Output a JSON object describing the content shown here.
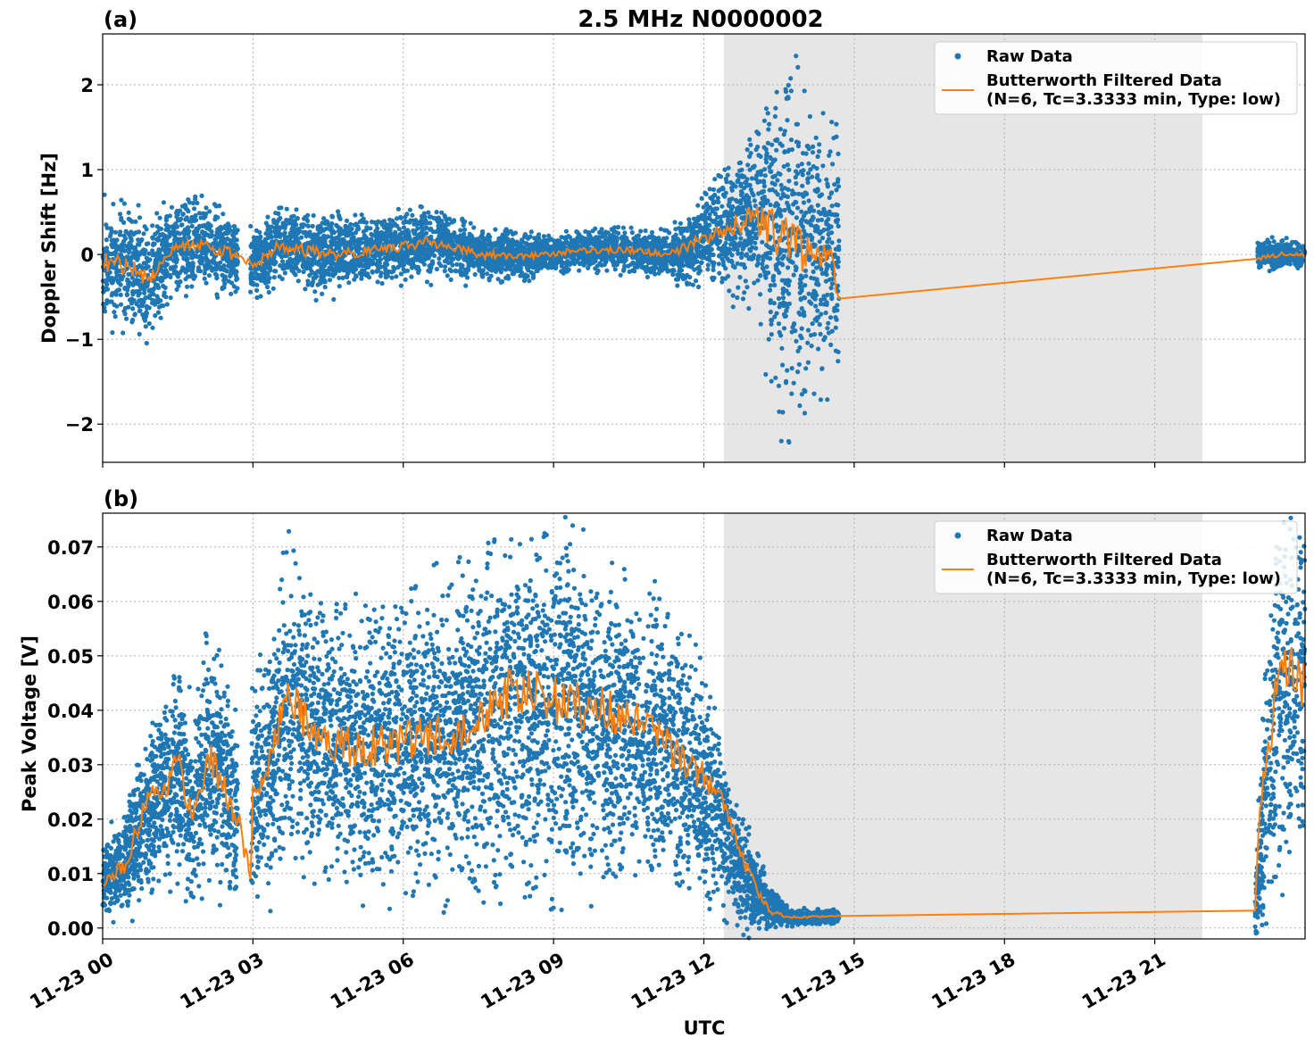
{
  "figure_title": "2.5 MHz N0000002",
  "colors": {
    "raw": "#1f77b4",
    "filtered": "#ff7f0e",
    "night_shade": "#e6e6e6",
    "grid": "#b0b0b0"
  },
  "x_axis": {
    "label": "UTC",
    "range_hours": [
      0,
      24
    ],
    "tick_hours": [
      0,
      3,
      6,
      9,
      12,
      15,
      18,
      21
    ],
    "tick_labels": [
      "11-23 00",
      "11-23 03",
      "11-23 06",
      "11-23 09",
      "11-23 12",
      "11-23 15",
      "11-23 18",
      "11-23 21"
    ],
    "shaded_interval_hours": [
      12.4,
      21.95
    ]
  },
  "legend": {
    "raw_label": "Raw Data",
    "filtered_label_line1": "Butterworth Filtered Data",
    "filtered_label_line2": "(N=6, Tc=3.3333 min, Type: low)"
  },
  "chart_data": [
    {
      "panel_label": "(a)",
      "type": "scatter",
      "ylabel": "Doppler Shift [Hz]",
      "ylim": [
        -2.45,
        2.6
      ],
      "yticks": [
        -2,
        -1,
        0,
        1,
        2
      ],
      "ytick_labels": [
        "−2",
        "−1",
        "0",
        "1",
        "2"
      ],
      "series": [
        {
          "name": "Raw Data",
          "kind": "points",
          "envelope": {
            "x": [
              0,
              0.5,
              0.9,
              1.4,
              1.9,
              2.6,
              3.0,
              3.5,
              4.5,
              5.5,
              6.5,
              7.5,
              8.5,
              9.5,
              10.5,
              11.3,
              11.9,
              12.4,
              13.0,
              13.5,
              14.0,
              14.5,
              14.7,
              23.05,
              23.5,
              24.0
            ],
            "center": [
              -0.1,
              -0.12,
              -0.3,
              0.1,
              0.12,
              0.0,
              -0.1,
              0.1,
              0.0,
              0.05,
              0.15,
              0.0,
              -0.02,
              0.05,
              0.05,
              0.0,
              0.15,
              0.3,
              0.4,
              0.2,
              0.0,
              0.0,
              -0.1,
              0.0,
              0.0,
              0.0
            ],
            "spread": [
              0.45,
              0.4,
              0.4,
              0.3,
              0.28,
              0.25,
              0.22,
              0.25,
              0.25,
              0.22,
              0.22,
              0.18,
              0.15,
              0.12,
              0.15,
              0.15,
              0.28,
              0.35,
              0.55,
              1.2,
              1.0,
              0.9,
              0.8,
              0.1,
              0.1,
              0.08
            ]
          },
          "gap_hours": [
            [
              2.7,
              2.95
            ],
            [
              14.7,
              23.05
            ]
          ]
        },
        {
          "name": "Butterworth Filtered Data",
          "kind": "line",
          "x": [
            0,
            0.5,
            0.9,
            1.4,
            1.9,
            2.6,
            3.0,
            3.5,
            4.5,
            5.5,
            6.5,
            7.5,
            8.5,
            9.5,
            10.5,
            11.3,
            11.9,
            12.4,
            13.0,
            13.5,
            14.0,
            14.5,
            14.7,
            23.05,
            23.5,
            24.0
          ],
          "y": [
            -0.1,
            -0.12,
            -0.3,
            0.1,
            0.12,
            0.0,
            -0.15,
            0.1,
            0.0,
            0.05,
            0.15,
            0.0,
            -0.02,
            0.05,
            0.05,
            0.0,
            0.15,
            0.3,
            0.45,
            0.2,
            0.0,
            0.0,
            -0.52,
            -0.05,
            0.0,
            0.0
          ]
        }
      ]
    },
    {
      "panel_label": "(b)",
      "type": "scatter",
      "ylabel": "Peak Voltage [V]",
      "ylim": [
        -0.002,
        0.0762
      ],
      "yticks": [
        0.0,
        0.01,
        0.02,
        0.03,
        0.04,
        0.05,
        0.06,
        0.07
      ],
      "ytick_labels": [
        "0.00",
        "0.01",
        "0.02",
        "0.03",
        "0.04",
        "0.05",
        "0.06",
        "0.07"
      ],
      "series": [
        {
          "name": "Raw Data",
          "kind": "points",
          "envelope": {
            "x": [
              0,
              0.5,
              0.9,
              1.2,
              1.5,
              1.8,
              2.1,
              2.7,
              3.0,
              3.3,
              3.7,
              4.2,
              5.0,
              6.0,
              7.0,
              8.0,
              9.0,
              10.0,
              11.0,
              11.7,
              12.3,
              12.8,
              13.3,
              13.7,
              14.7,
              23.0,
              23.2,
              23.5,
              24.0
            ],
            "center": [
              0.009,
              0.012,
              0.022,
              0.025,
              0.03,
              0.02,
              0.032,
              0.022,
              0.026,
              0.028,
              0.042,
              0.035,
              0.033,
              0.034,
              0.036,
              0.04,
              0.04,
              0.038,
              0.035,
              0.03,
              0.02,
              0.01,
              0.004,
              0.002,
              0.002,
              0.003,
              0.025,
              0.045,
              0.045
            ],
            "spread": [
              0.004,
              0.006,
              0.008,
              0.009,
              0.012,
              0.009,
              0.012,
              0.01,
              0.01,
              0.012,
              0.015,
              0.014,
              0.014,
              0.015,
              0.015,
              0.018,
              0.018,
              0.016,
              0.014,
              0.012,
              0.009,
              0.006,
              0.002,
              0.0008,
              0.0006,
              0.002,
              0.015,
              0.02,
              0.018
            ]
          },
          "gap_hours": [
            [
              2.7,
              2.95
            ],
            [
              14.7,
              23.0
            ]
          ]
        },
        {
          "name": "Butterworth Filtered Data",
          "kind": "line",
          "x": [
            0,
            0.5,
            0.9,
            1.2,
            1.5,
            1.8,
            2.1,
            2.7,
            2.95,
            3.0,
            3.3,
            3.7,
            4.2,
            5.0,
            6.0,
            7.0,
            8.0,
            9.0,
            10.0,
            11.0,
            11.7,
            12.3,
            12.8,
            13.3,
            13.7,
            14.7,
            23.0,
            23.1,
            23.5,
            24.0
          ],
          "y": [
            0.008,
            0.012,
            0.025,
            0.025,
            0.031,
            0.02,
            0.032,
            0.02,
            0.009,
            0.026,
            0.028,
            0.045,
            0.035,
            0.033,
            0.034,
            0.036,
            0.043,
            0.042,
            0.04,
            0.036,
            0.03,
            0.025,
            0.012,
            0.003,
            0.002,
            0.0022,
            0.0032,
            0.022,
            0.048,
            0.045
          ]
        }
      ]
    }
  ]
}
